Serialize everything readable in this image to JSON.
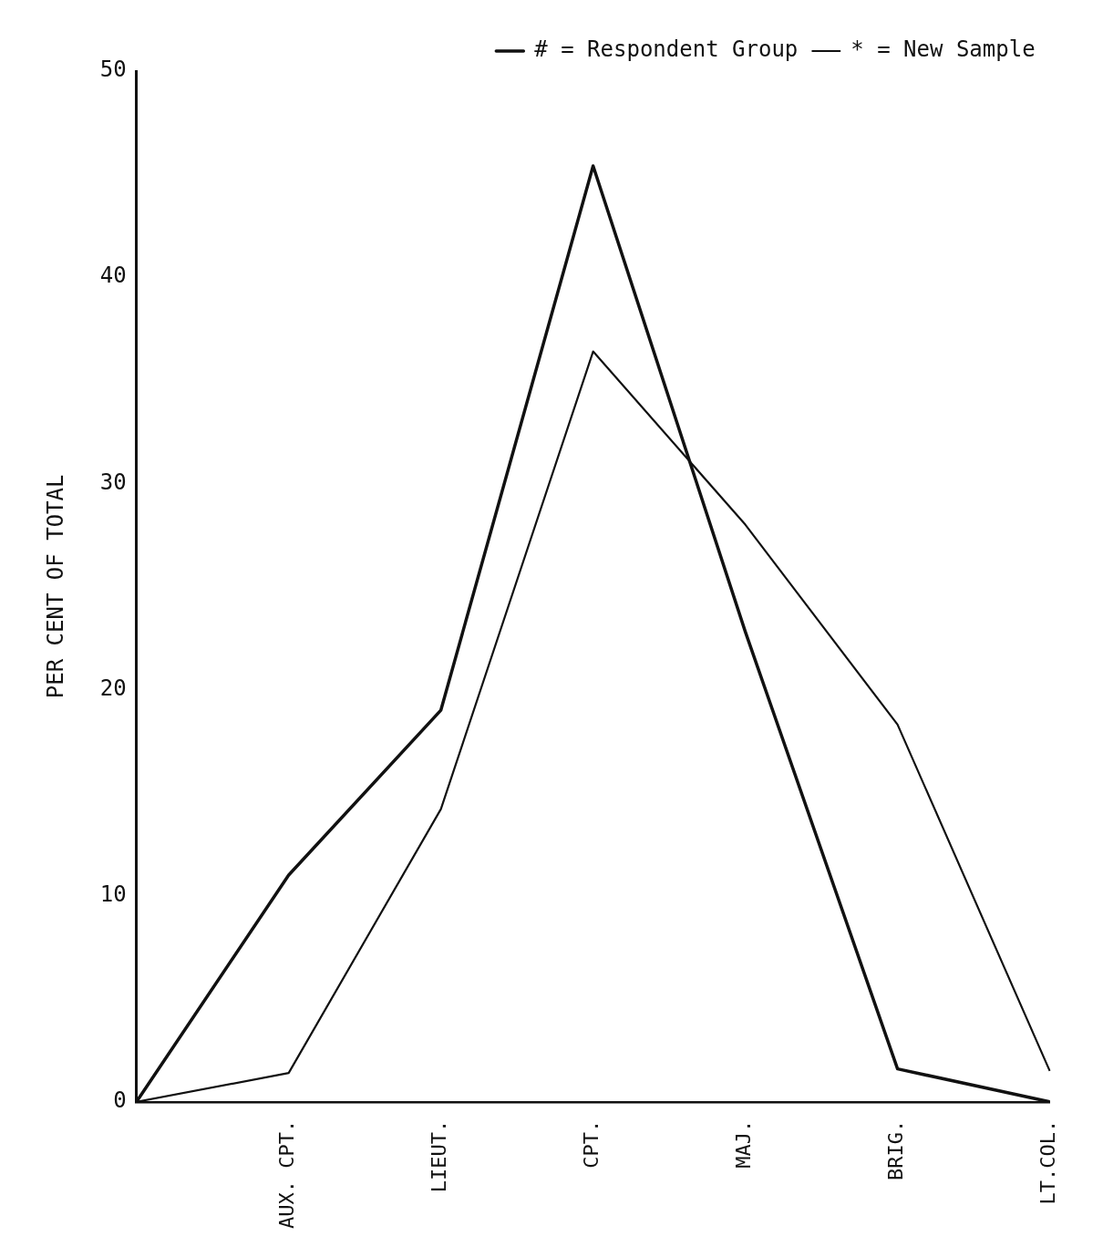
{
  "chart_data": {
    "type": "line",
    "ylabel": "PER CENT OF TOTAL",
    "categories": [
      null,
      "AUX. CPT.",
      "LIEUT.",
      "CPT.",
      "MAJ.",
      "BRIG.",
      "LT.COL."
    ],
    "series": [
      {
        "name": "# = Respondent Group",
        "color": "#111111",
        "values": [
          0,
          11,
          19,
          45.4,
          22.8,
          1.6,
          0
        ]
      },
      {
        "name": "* = New Sample",
        "color": "#111111",
        "values": [
          0,
          1.4,
          14.2,
          36.4,
          28,
          18.3,
          1.5
        ]
      }
    ],
    "ylim": [
      0,
      50
    ],
    "yticks": [
      0,
      10,
      20,
      30,
      40,
      50
    ],
    "grid": false,
    "legend": "top right",
    "marker": "none",
    "line_style": "solid"
  }
}
